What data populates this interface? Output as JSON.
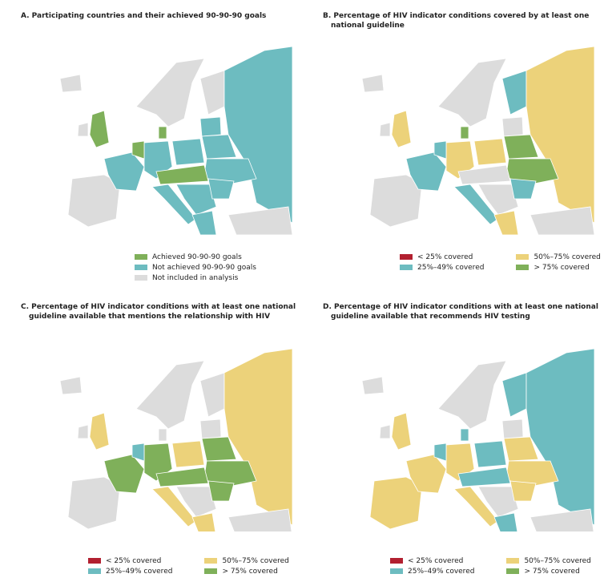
{
  "panels": [
    {
      "title": "A. Participating countries and their achieved 90-90-90 goals",
      "legend": [
        {
          "label": "Achieved 90-90-90 goals",
          "color": "#7fb05a"
        },
        {
          "label": "Not achieved 90-90-90 goals",
          "color": "#6dbcc0"
        },
        {
          "label": "Not included in analysis",
          "color": "#dcdcdc"
        }
      ]
    },
    {
      "title": "B. Percentage of HIV indicator conditions covered by at least one national guideline",
      "legend": [
        {
          "label": "< 25% covered",
          "color": "#b22030"
        },
        {
          "label": "25%–49% covered",
          "color": "#6dbcc0"
        },
        {
          "label": "50%–75% covered",
          "color": "#ecd27a"
        },
        {
          "label": "> 75% covered",
          "color": "#7fb05a"
        }
      ]
    },
    {
      "title": "C. Percentage of HIV indicator conditions with at least one national guideline available that mentions the relationship with HIV",
      "legend": [
        {
          "label": "< 25% covered",
          "color": "#b22030"
        },
        {
          "label": "25%–49% covered",
          "color": "#6dbcc0"
        },
        {
          "label": "50%–75% covered",
          "color": "#ecd27a"
        },
        {
          "label": "> 75% covered",
          "color": "#7fb05a"
        }
      ]
    },
    {
      "title": "D. Percentage of HIV indicator conditions with at least one national guideline available that recommends HIV testing",
      "legend": [
        {
          "label": "< 25% covered",
          "color": "#b22030"
        },
        {
          "label": "25%–49% covered",
          "color": "#6dbcc0"
        },
        {
          "label": "50%–75% covered",
          "color": "#ecd27a"
        },
        {
          "label": "> 75% covered",
          "color": "#7fb05a"
        }
      ]
    }
  ]
}
